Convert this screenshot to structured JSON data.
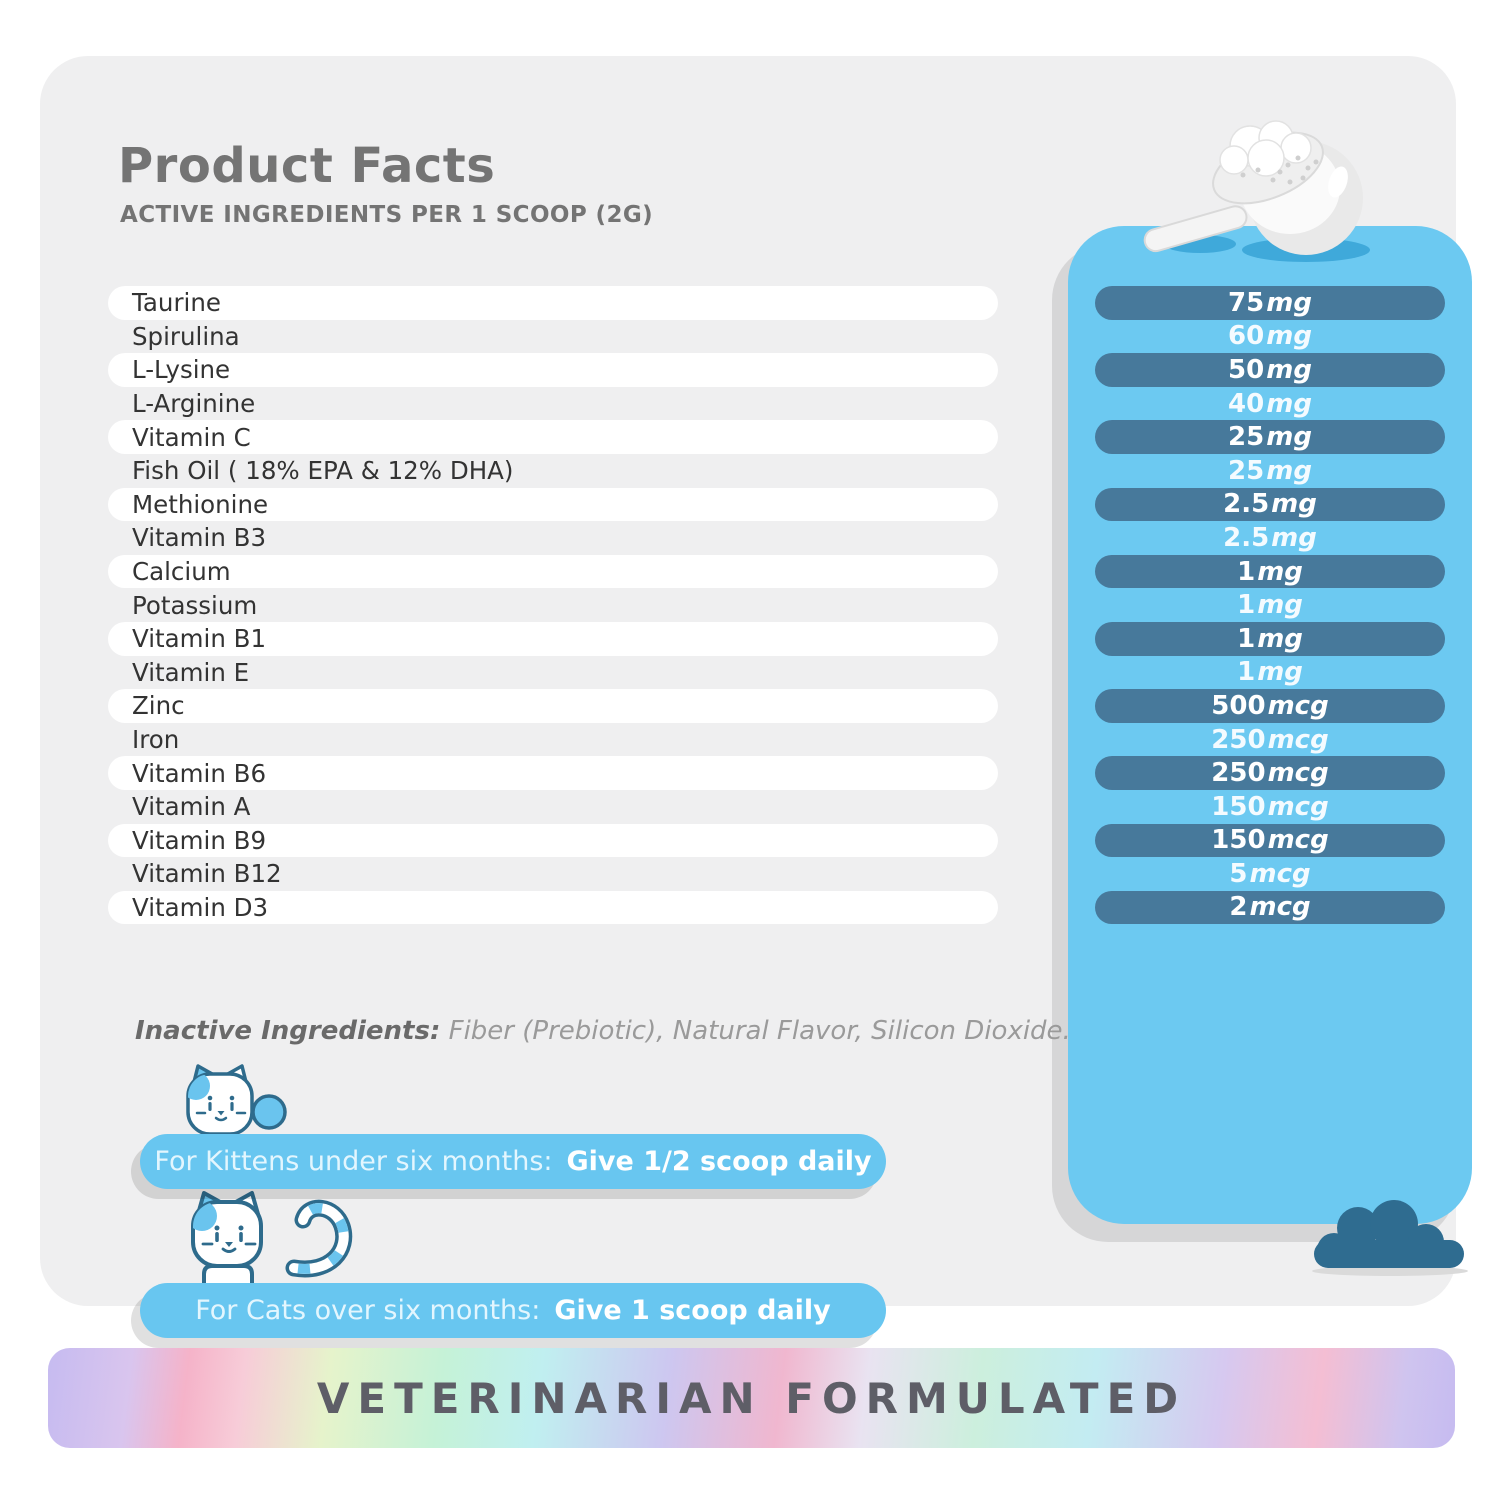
{
  "header": {
    "title": "Product Facts",
    "subtitle": "ACTIVE INGREDIENTS PER 1 SCOOP (2G)"
  },
  "ingredients": [
    {
      "name": "Taurine",
      "amount": "75",
      "unit": "mg"
    },
    {
      "name": "Spirulina",
      "amount": "60",
      "unit": "mg"
    },
    {
      "name": "L-Lysine",
      "amount": "50",
      "unit": "mg"
    },
    {
      "name": "L-Arginine",
      "amount": "40",
      "unit": "mg"
    },
    {
      "name": "Vitamin C",
      "amount": "25",
      "unit": "mg"
    },
    {
      "name": "Fish Oil ( 18% EPA & 12% DHA)",
      "amount": "25",
      "unit": "mg"
    },
    {
      "name": "Methionine",
      "amount": "2.5",
      "unit": "mg"
    },
    {
      "name": "Vitamin B3",
      "amount": "2.5",
      "unit": "mg"
    },
    {
      "name": "Calcium",
      "amount": "1",
      "unit": "mg"
    },
    {
      "name": "Potassium",
      "amount": "1",
      "unit": "mg"
    },
    {
      "name": "Vitamin B1",
      "amount": "1",
      "unit": "mg"
    },
    {
      "name": "Vitamin E",
      "amount": "1",
      "unit": "mg"
    },
    {
      "name": "Zinc",
      "amount": "500",
      "unit": "mcg"
    },
    {
      "name": "Iron",
      "amount": "250",
      "unit": "mcg"
    },
    {
      "name": "Vitamin B6",
      "amount": "250",
      "unit": "mcg"
    },
    {
      "name": "Vitamin A",
      "amount": "150",
      "unit": "mcg"
    },
    {
      "name": "Vitamin B9",
      "amount": "150",
      "unit": "mcg"
    },
    {
      "name": "Vitamin B12",
      "amount": "5",
      "unit": "mcg"
    },
    {
      "name": "Vitamin D3",
      "amount": "2",
      "unit": "mcg"
    }
  ],
  "inactive": {
    "label": "Inactive Ingredients:",
    "text": " Fiber (Prebiotic), Natural Flavor, Silicon Dioxide."
  },
  "dosage": [
    {
      "prefix": "For Kittens under six months:",
      "instruction": "Give 1/2 scoop daily"
    },
    {
      "prefix": "For Cats over six months:",
      "instruction": "Give 1 scoop daily"
    }
  ],
  "footer": {
    "banner": "VETERINARIAN FORMULATED"
  },
  "icons": {
    "scoop": "measuring-scoop-with-powder",
    "kitten": "kitten-mascot",
    "cat": "cat-mascot-with-curled-tail",
    "bush": "bush-accent"
  },
  "colors": {
    "card_gray": "#efeff0",
    "panel_blue": "#6cc9f1",
    "pill_dark": "#47799b",
    "banner_blue": "#68c6f0",
    "bush_teal": "#2f6c90",
    "title_gray": "#747474",
    "holo_text": "#5e5e67"
  }
}
